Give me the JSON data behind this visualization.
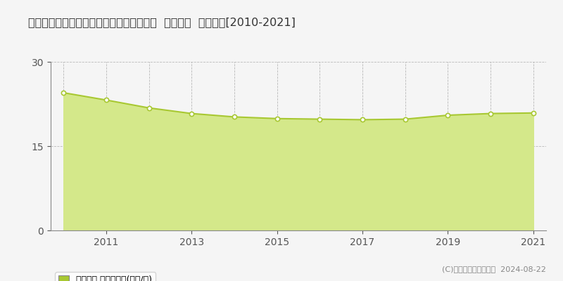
{
  "title": "大分県別府市大字鶴見字砂原１２７番１外  地価公示  地価推移[2010-2021]",
  "years": [
    2010,
    2011,
    2012,
    2013,
    2014,
    2015,
    2016,
    2017,
    2018,
    2019,
    2020,
    2021
  ],
  "values": [
    24.5,
    23.2,
    21.8,
    20.8,
    20.2,
    19.9,
    19.8,
    19.7,
    19.8,
    20.5,
    20.8,
    20.9
  ],
  "ylim": [
    0,
    30
  ],
  "yticks": [
    0,
    15,
    30
  ],
  "line_color": "#a8c832",
  "fill_color": "#d4e88a",
  "marker_color": "#ffffff",
  "marker_edge_color": "#a8c832",
  "grid_color": "#aaaaaa",
  "bg_color": "#f5f5f5",
  "legend_label": "地価公示 平均坪単価(万円/坪)",
  "copyright_text": "(C)土地価格ドットコム  2024-08-22",
  "title_fontsize": 11.5,
  "axis_fontsize": 10,
  "legend_fontsize": 9
}
